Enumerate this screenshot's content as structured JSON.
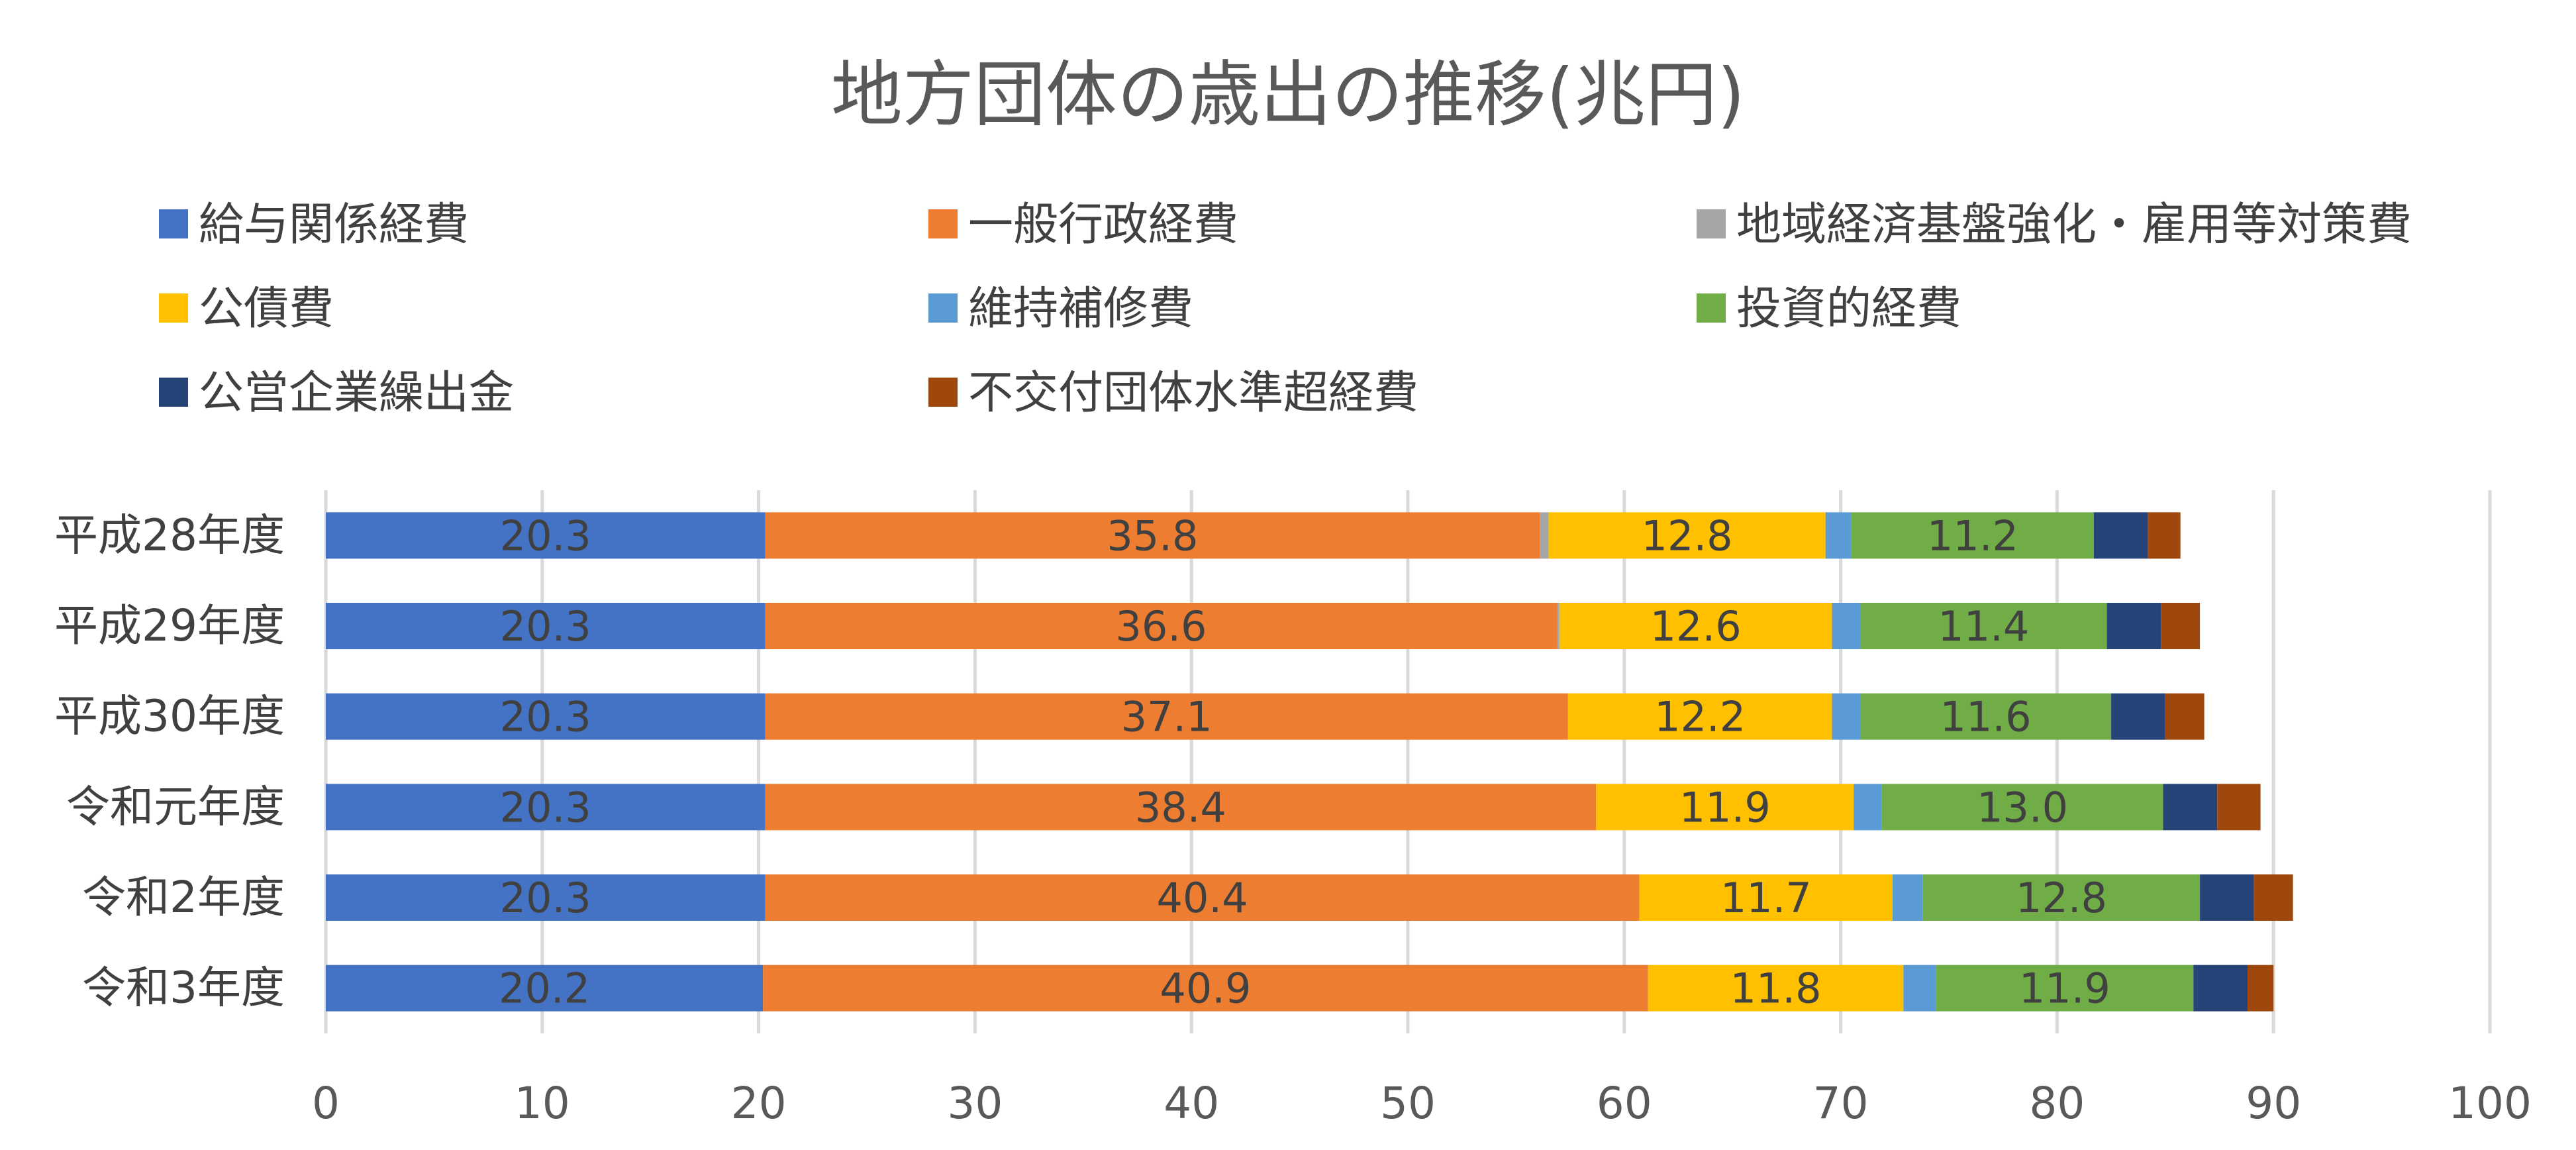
{
  "chart_data": {
    "type": "bar",
    "orientation": "horizontal",
    "stacked": true,
    "title": "地方団体の歳出の推移(兆円)",
    "categories": [
      "平成28年度",
      "平成29年度",
      "平成30年度",
      "令和元年度",
      "令和2年度",
      "令和3年度"
    ],
    "xlim": [
      0,
      100
    ],
    "x_ticks": [
      0,
      10,
      20,
      30,
      40,
      50,
      60,
      70,
      80,
      90,
      100
    ],
    "grid": true,
    "legend_position": "top",
    "series": [
      {
        "name": "給与関係経費",
        "color": "#4472c4",
        "values": [
          20.3,
          20.3,
          20.3,
          20.3,
          20.3,
          20.2
        ],
        "labels_shown": true
      },
      {
        "name": "一般行政経費",
        "color": "#ed7d31",
        "values": [
          35.8,
          36.6,
          37.1,
          38.4,
          40.4,
          40.9
        ],
        "labels_shown": true
      },
      {
        "name": "地域経済基盤強化・雇用等対策費",
        "color": "#a5a5a5",
        "values": [
          0.4,
          0.1,
          0.0,
          0.0,
          0.0,
          0.0
        ],
        "labels_shown": false
      },
      {
        "name": "公債費",
        "color": "#ffc000",
        "values": [
          12.8,
          12.6,
          12.2,
          11.9,
          11.7,
          11.8
        ],
        "labels_shown": true
      },
      {
        "name": "維持補修費",
        "color": "#5b9bd5",
        "values": [
          1.2,
          1.3,
          1.3,
          1.3,
          1.4,
          1.5
        ],
        "labels_shown": false
      },
      {
        "name": "投資的経費",
        "color": "#70ad47",
        "values": [
          11.2,
          11.4,
          11.6,
          13.0,
          12.8,
          11.9
        ],
        "labels_shown": true
      },
      {
        "name": "公営企業繰出金",
        "color": "#264478",
        "values": [
          2.5,
          2.5,
          2.5,
          2.5,
          2.5,
          2.5
        ],
        "labels_shown": false
      },
      {
        "name": "不交付団体水準超経費",
        "color": "#9e480e",
        "values": [
          1.5,
          1.8,
          1.8,
          2.0,
          1.8,
          1.2
        ],
        "labels_shown": false
      }
    ]
  }
}
